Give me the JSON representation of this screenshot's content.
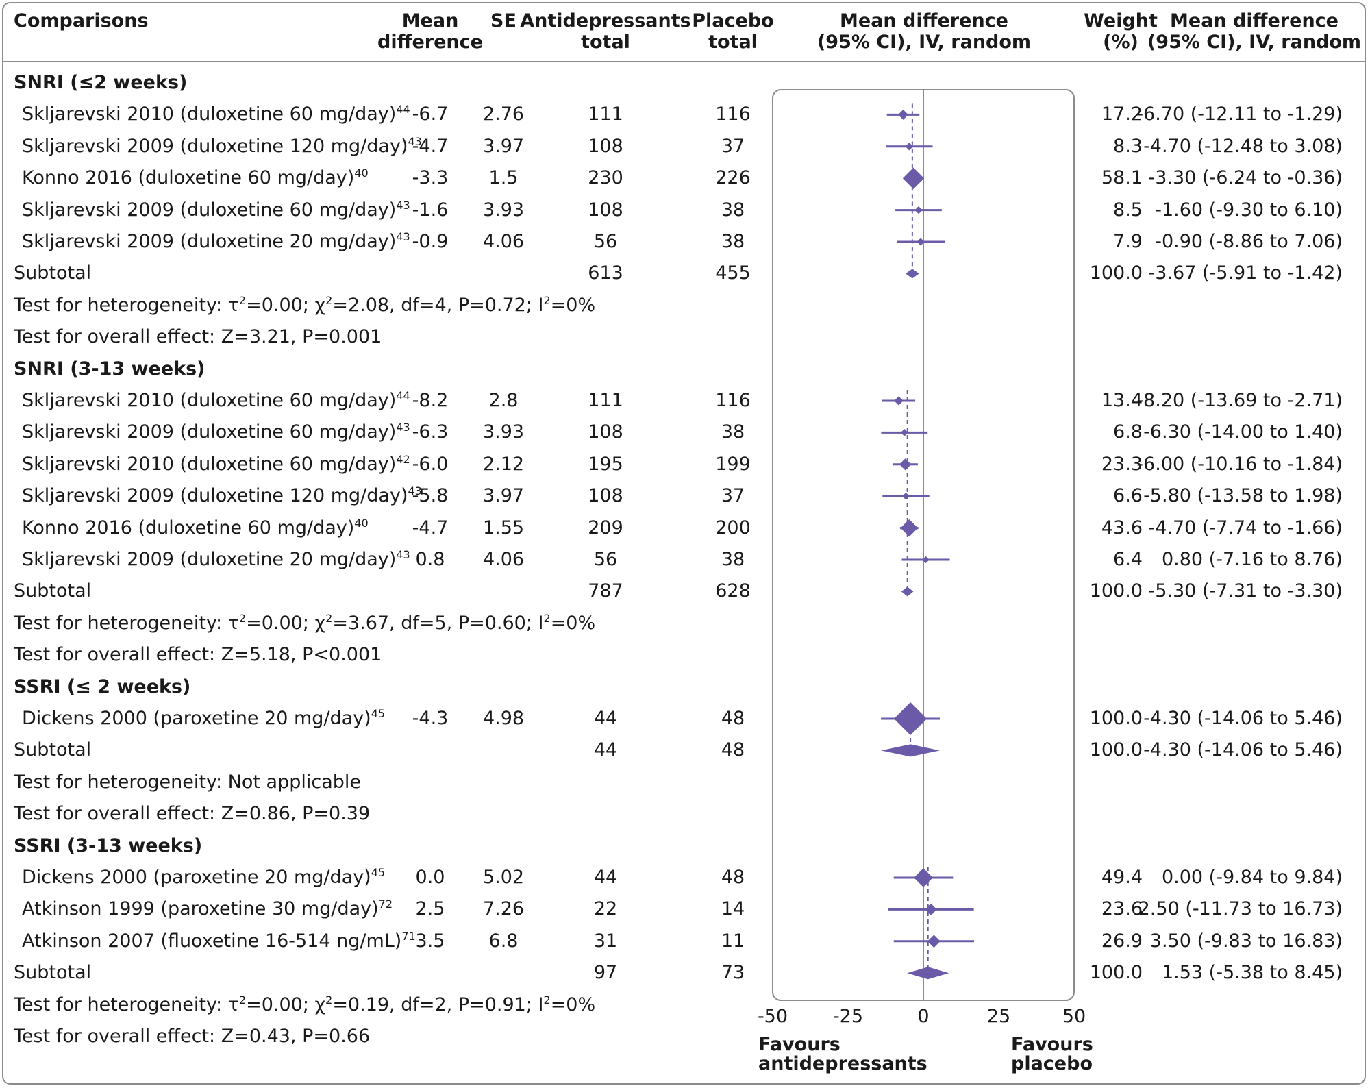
{
  "headers": {
    "comparisons": "Comparisons",
    "md_1": "Mean",
    "md_2": "difference",
    "se": "SE",
    "anti_1": "Antidepressants",
    "anti_2": "total",
    "pla_1": "Placebo",
    "pla_2": "total",
    "plot_1": "Mean difference",
    "plot_2": "(95% CI), IV, random",
    "w_1": "Weight",
    "w_2": "(%)",
    "ci_1": "Mean difference",
    "ci_2": "(95% CI), IV, random"
  },
  "rows": [
    {
      "kind": "group",
      "label": "SNRI (≤2 weeks)"
    },
    {
      "kind": "study",
      "label": "Skljarevski 2010 (duloxetine 60 mg/day)",
      "ref": "44",
      "md": "-6.7",
      "se": "2.76",
      "anti": "111",
      "pla": "116",
      "weight": "17.2",
      "ci": "-6.70 (-12.11 to -1.29)",
      "est": -6.7,
      "lo": -12.11,
      "hi": -1.29,
      "w": 17.2
    },
    {
      "kind": "study",
      "label": "Skljarevski 2009 (duloxetine 120 mg/day)",
      "ref": "43",
      "md": "-4.7",
      "se": "3.97",
      "anti": "108",
      "pla": "37",
      "weight": "8.3",
      "ci": "-4.70 (-12.48 to 3.08)",
      "est": -4.7,
      "lo": -12.48,
      "hi": 3.08,
      "w": 8.3
    },
    {
      "kind": "study",
      "label": "Konno 2016 (duloxetine 60 mg/day)",
      "ref": "40",
      "md": "-3.3",
      "se": "1.5",
      "anti": "230",
      "pla": "226",
      "weight": "58.1",
      "ci": "-3.30 (-6.24 to -0.36)",
      "est": -3.3,
      "lo": -6.24,
      "hi": -0.36,
      "w": 58.1
    },
    {
      "kind": "study",
      "label": "Skljarevski 2009 (duloxetine 60 mg/day)",
      "ref": "43",
      "md": "-1.6",
      "se": "3.93",
      "anti": "108",
      "pla": "38",
      "weight": "8.5",
      "ci": "-1.60 (-9.30 to 6.10)",
      "est": -1.6,
      "lo": -9.3,
      "hi": 6.1,
      "w": 8.5
    },
    {
      "kind": "study",
      "label": "Skljarevski 2009 (duloxetine 20 mg/day)",
      "ref": "43",
      "md": "-0.9",
      "se": "4.06",
      "anti": "56",
      "pla": "38",
      "weight": "7.9",
      "ci": "-0.90 (-8.86 to 7.06)",
      "est": -0.9,
      "lo": -8.86,
      "hi": 7.06,
      "w": 7.9
    },
    {
      "kind": "subtotal",
      "label": "Subtotal",
      "anti": "613",
      "pla": "455",
      "weight": "100.0",
      "ci": "-3.67 (-5.91 to -1.42)",
      "est": -3.67,
      "lo": -5.91,
      "hi": -1.42
    },
    {
      "kind": "note",
      "html": "Test for heterogeneity: τ<sup>2</sup>=0.00; χ<sup>2</sup>=2.08, df=4, P=0.72; I<sup>2</sup>=0%"
    },
    {
      "kind": "note",
      "html": "Test for overall effect: Z=3.21, P=0.001"
    },
    {
      "kind": "group",
      "label": "SNRI (3-13 weeks)"
    },
    {
      "kind": "study",
      "label": "Skljarevski 2010 (duloxetine 60 mg/day)",
      "ref": "44",
      "md": "-8.2",
      "se": "2.8",
      "anti": "111",
      "pla": "116",
      "weight": "13.4",
      "ci": "-8.20 (-13.69 to -2.71)",
      "est": -8.2,
      "lo": -13.69,
      "hi": -2.71,
      "w": 13.4
    },
    {
      "kind": "study",
      "label": "Skljarevski 2009 (duloxetine 60 mg/day)",
      "ref": "43",
      "md": "-6.3",
      "se": "3.93",
      "anti": "108",
      "pla": "38",
      "weight": "6.8",
      "ci": "-6.30 (-14.00 to 1.40)",
      "est": -6.3,
      "lo": -14.0,
      "hi": 1.4,
      "w": 6.8
    },
    {
      "kind": "study",
      "label": "Skljarevski 2010 (duloxetine 60 mg/day)",
      "ref": "42",
      "md": "-6.0",
      "se": "2.12",
      "anti": "195",
      "pla": "199",
      "weight": "23.3",
      "ci": "-6.00 (-10.16 to -1.84)",
      "est": -6.0,
      "lo": -10.16,
      "hi": -1.84,
      "w": 23.3
    },
    {
      "kind": "study",
      "label": "Skljarevski 2009 (duloxetine 120 mg/day)",
      "ref": "43",
      "md": "-5.8",
      "se": "3.97",
      "anti": "108",
      "pla": "37",
      "weight": "6.6",
      "ci": "-5.80 (-13.58 to 1.98)",
      "est": -5.8,
      "lo": -13.58,
      "hi": 1.98,
      "w": 6.6
    },
    {
      "kind": "study",
      "label": "Konno 2016 (duloxetine 60 mg/day)",
      "ref": "40",
      "md": "-4.7",
      "se": "1.55",
      "anti": "209",
      "pla": "200",
      "weight": "43.6",
      "ci": "-4.70 (-7.74 to -1.66)",
      "est": -4.7,
      "lo": -7.74,
      "hi": -1.66,
      "w": 43.6
    },
    {
      "kind": "study",
      "label": "Skljarevski 2009 (duloxetine 20 mg/day)",
      "ref": "43",
      "md": "0.8",
      "se": "4.06",
      "anti": "56",
      "pla": "38",
      "weight": "6.4",
      "ci": "0.80 (-7.16 to 8.76)",
      "est": 0.8,
      "lo": -7.16,
      "hi": 8.76,
      "w": 6.4
    },
    {
      "kind": "subtotal",
      "label": "Subtotal",
      "anti": "787",
      "pla": "628",
      "weight": "100.0",
      "ci": "-5.30 (-7.31 to -3.30)",
      "est": -5.3,
      "lo": -7.31,
      "hi": -3.3
    },
    {
      "kind": "note",
      "html": "Test for heterogeneity: τ<sup>2</sup>=0.00; χ<sup>2</sup>=3.67, df=5, P=0.60; I<sup>2</sup>=0%"
    },
    {
      "kind": "note",
      "html": "Test for overall effect: Z=5.18, P&lt;0.001"
    },
    {
      "kind": "group",
      "label": "SSRI (≤ 2 weeks)"
    },
    {
      "kind": "study",
      "label": "Dickens 2000 (paroxetine 20 mg/day)",
      "ref": "45",
      "md": "-4.3",
      "se": "4.98",
      "anti": "44",
      "pla": "48",
      "weight": "100.0",
      "ci": "-4.30 (-14.06 to 5.46)",
      "est": -4.3,
      "lo": -14.06,
      "hi": 5.46,
      "w": 100.0
    },
    {
      "kind": "subtotal",
      "label": "Subtotal",
      "anti": "44",
      "pla": "48",
      "weight": "100.0",
      "ci": "-4.30 (-14.06 to 5.46)",
      "est": -4.3,
      "lo": -14.06,
      "hi": 5.46
    },
    {
      "kind": "note",
      "html": "Test for heterogeneity: Not applicable"
    },
    {
      "kind": "note",
      "html": "Test for overall effect: Z=0.86, P=0.39"
    },
    {
      "kind": "group",
      "label": "SSRI (3-13 weeks)"
    },
    {
      "kind": "study",
      "label": "Dickens 2000 (paroxetine 20 mg/day)",
      "ref": "45",
      "md": "0.0",
      "se": "5.02",
      "anti": "44",
      "pla": "48",
      "weight": "49.4",
      "ci": "0.00 (-9.84 to 9.84)",
      "est": 0.0,
      "lo": -9.84,
      "hi": 9.84,
      "w": 49.4
    },
    {
      "kind": "study",
      "label": "Atkinson 1999 (paroxetine 30 mg/day)",
      "ref": "72",
      "md": "2.5",
      "se": "7.26",
      "anti": "22",
      "pla": "14",
      "weight": "23.6",
      "ci": "2.50 (-11.73 to 16.73)",
      "est": 2.5,
      "lo": -11.73,
      "hi": 16.73,
      "w": 23.6
    },
    {
      "kind": "study",
      "label": "Atkinson 2007 (fluoxetine 16-514 ng/mL)",
      "ref": "71",
      "md": "3.5",
      "se": "6.8",
      "anti": "31",
      "pla": "11",
      "weight": "26.9",
      "ci": "3.50 (-9.83 to 16.83)",
      "est": 3.5,
      "lo": -9.83,
      "hi": 16.83,
      "w": 26.9
    },
    {
      "kind": "subtotal",
      "label": "Subtotal",
      "anti": "97",
      "pla": "73",
      "weight": "100.0",
      "ci": "1.53 (-5.38 to 8.45)",
      "est": 1.53,
      "lo": -5.38,
      "hi": 8.45
    },
    {
      "kind": "note",
      "html": "Test for heterogeneity: τ<sup>2</sup>=0.00; χ<sup>2</sup>=0.19, df=2, P=0.91; I<sup>2</sup>=0%"
    },
    {
      "kind": "note",
      "html": "Test for overall effect: Z=0.43, P=0.66"
    }
  ],
  "axis": {
    "ticks": [
      -50,
      -25,
      0,
      25,
      50
    ],
    "tick_labels": [
      "-50",
      "-25",
      "0",
      "25",
      "50"
    ],
    "favours_left_1": "Favours",
    "favours_left_2": "antidepressants",
    "favours_right_1": "Favours",
    "favours_right_2": "placebo"
  },
  "colors": {
    "marker": "#6a5aa8",
    "line": "#6a5aa8",
    "frame": "#8c8c8c",
    "zero": "#8c8c8c"
  },
  "chart_data": {
    "type": "forest",
    "title": "",
    "xlabel": "",
    "xlim": [
      -50,
      50
    ],
    "reference_line": 0,
    "groups": [
      {
        "name": "SNRI (≤2 weeks)",
        "studies": [
          {
            "label": "Skljarevski 2010 (duloxetine 60 mg/day)",
            "md": -6.7,
            "lo": -12.11,
            "hi": -1.29,
            "weight": 17.2
          },
          {
            "label": "Skljarevski 2009 (duloxetine 120 mg/day)",
            "md": -4.7,
            "lo": -12.48,
            "hi": 3.08,
            "weight": 8.3
          },
          {
            "label": "Konno 2016 (duloxetine 60 mg/day)",
            "md": -3.3,
            "lo": -6.24,
            "hi": -0.36,
            "weight": 58.1
          },
          {
            "label": "Skljarevski 2009 (duloxetine 60 mg/day)",
            "md": -1.6,
            "lo": -9.3,
            "hi": 6.1,
            "weight": 8.5
          },
          {
            "label": "Skljarevski 2009 (duloxetine 20 mg/day)",
            "md": -0.9,
            "lo": -8.86,
            "hi": 7.06,
            "weight": 7.9
          }
        ],
        "subtotal": {
          "md": -3.67,
          "lo": -5.91,
          "hi": -1.42
        }
      },
      {
        "name": "SNRI (3-13 weeks)",
        "studies": [
          {
            "label": "Skljarevski 2010 (duloxetine 60 mg/day)",
            "md": -8.2,
            "lo": -13.69,
            "hi": -2.71,
            "weight": 13.4
          },
          {
            "label": "Skljarevski 2009 (duloxetine 60 mg/day)",
            "md": -6.3,
            "lo": -14.0,
            "hi": 1.4,
            "weight": 6.8
          },
          {
            "label": "Skljarevski 2010 (duloxetine 60 mg/day)",
            "md": -6.0,
            "lo": -10.16,
            "hi": -1.84,
            "weight": 23.3
          },
          {
            "label": "Skljarevski 2009 (duloxetine 120 mg/day)",
            "md": -5.8,
            "lo": -13.58,
            "hi": 1.98,
            "weight": 6.6
          },
          {
            "label": "Konno 2016 (duloxetine 60 mg/day)",
            "md": -4.7,
            "lo": -7.74,
            "hi": -1.66,
            "weight": 43.6
          },
          {
            "label": "Skljarevski 2009 (duloxetine 20 mg/day)",
            "md": 0.8,
            "lo": -7.16,
            "hi": 8.76,
            "weight": 6.4
          }
        ],
        "subtotal": {
          "md": -5.3,
          "lo": -7.31,
          "hi": -3.3
        }
      },
      {
        "name": "SSRI (≤ 2 weeks)",
        "studies": [
          {
            "label": "Dickens 2000 (paroxetine 20 mg/day)",
            "md": -4.3,
            "lo": -14.06,
            "hi": 5.46,
            "weight": 100.0
          }
        ],
        "subtotal": {
          "md": -4.3,
          "lo": -14.06,
          "hi": 5.46
        }
      },
      {
        "name": "SSRI (3-13 weeks)",
        "studies": [
          {
            "label": "Dickens 2000 (paroxetine 20 mg/day)",
            "md": 0.0,
            "lo": -9.84,
            "hi": 9.84,
            "weight": 49.4
          },
          {
            "label": "Atkinson 1999 (paroxetine 30 mg/day)",
            "md": 2.5,
            "lo": -11.73,
            "hi": 16.73,
            "weight": 23.6
          },
          {
            "label": "Atkinson 2007 (fluoxetine 16-514 ng/mL)",
            "md": 3.5,
            "lo": -9.83,
            "hi": 16.83,
            "weight": 26.9
          }
        ],
        "subtotal": {
          "md": 1.53,
          "lo": -5.38,
          "hi": 8.45
        }
      }
    ]
  }
}
